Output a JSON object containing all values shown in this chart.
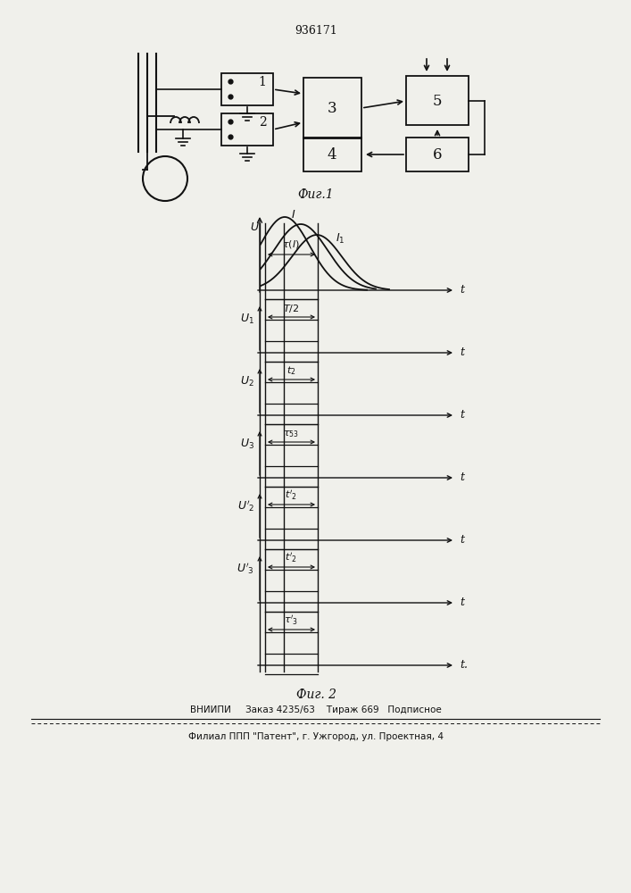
{
  "title": "936171",
  "fig1_caption": "Фиг.1",
  "fig2_caption": "Фиг. 2",
  "footer_line1": "ВНИИПИ     Заказ 4235/63    Тираж 669   Подписное",
  "footer_line2": "Филиал ППП \"Патент\", г. Ужгород, ул. Проектная, 4",
  "bg_color": "#f0f0eb"
}
